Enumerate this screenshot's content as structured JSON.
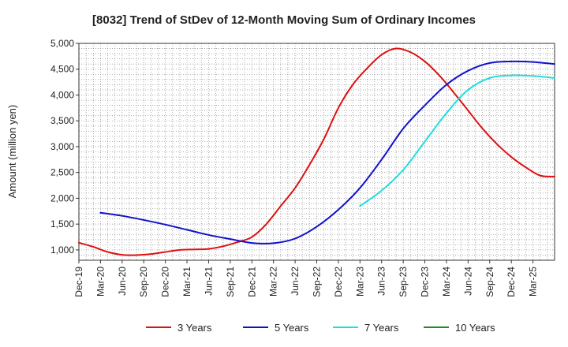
{
  "chart_data": {
    "type": "line",
    "title": "[8032]  Trend of StDev of 12-Month Moving Sum of Ordinary Incomes",
    "xlabel": "",
    "ylabel": "Amount (million yen)",
    "ylim": [
      800,
      5000
    ],
    "yticks": [
      1000,
      1500,
      2000,
      2500,
      3000,
      3500,
      4000,
      4500,
      5000
    ],
    "ytick_labels": [
      "1,000",
      "1,500",
      "2,000",
      "2,500",
      "3,000",
      "3,500",
      "4,000",
      "4,500",
      "5,000"
    ],
    "x_range": [
      0,
      66
    ],
    "xticks": [
      "Dec-19",
      "Mar-20",
      "Jun-20",
      "Sep-20",
      "Dec-20",
      "Mar-21",
      "Jun-21",
      "Sep-21",
      "Dec-21",
      "Mar-22",
      "Jun-22",
      "Sep-22",
      "Dec-22",
      "Mar-23",
      "Jun-23",
      "Sep-23",
      "Dec-23",
      "Mar-24",
      "Jun-24",
      "Sep-24",
      "Dec-24",
      "Mar-25"
    ],
    "grid": true,
    "legend_position": "bottom",
    "series": [
      {
        "name": "3 Years",
        "color": "#dd1111",
        "x": [
          0,
          2,
          4,
          6,
          8,
          10,
          12,
          14,
          16,
          18,
          20,
          22,
          24,
          26,
          28,
          30,
          32,
          34,
          36,
          38,
          40,
          42,
          44,
          46,
          48,
          50,
          52,
          54,
          56,
          58,
          60,
          62,
          64,
          66
        ],
        "values": [
          1140,
          1060,
          960,
          905,
          900,
          920,
          960,
          1000,
          1010,
          1020,
          1070,
          1150,
          1250,
          1500,
          1850,
          2200,
          2650,
          3150,
          3750,
          4200,
          4520,
          4780,
          4900,
          4830,
          4650,
          4380,
          4050,
          3700,
          3350,
          3050,
          2800,
          2600,
          2440,
          2420
        ]
      },
      {
        "name": "5 Years",
        "color": "#1111cc",
        "x": [
          3,
          6,
          9,
          12,
          15,
          18,
          21,
          24,
          27,
          30,
          33,
          36,
          39,
          42,
          45,
          48,
          51,
          54,
          57,
          60,
          63,
          66
        ],
        "values": [
          1720,
          1660,
          1580,
          1490,
          1390,
          1290,
          1210,
          1135,
          1130,
          1220,
          1450,
          1780,
          2200,
          2750,
          3350,
          3800,
          4200,
          4470,
          4620,
          4650,
          4640,
          4600
        ]
      },
      {
        "name": "7 Years",
        "color": "#22dddd",
        "x": [
          39,
          42,
          45,
          48,
          51,
          54,
          57,
          60,
          63,
          66
        ],
        "values": [
          1850,
          2150,
          2550,
          3100,
          3650,
          4100,
          4330,
          4380,
          4370,
          4330
        ]
      },
      {
        "name": "10 Years",
        "color": "#228822",
        "x": [],
        "values": []
      }
    ]
  }
}
